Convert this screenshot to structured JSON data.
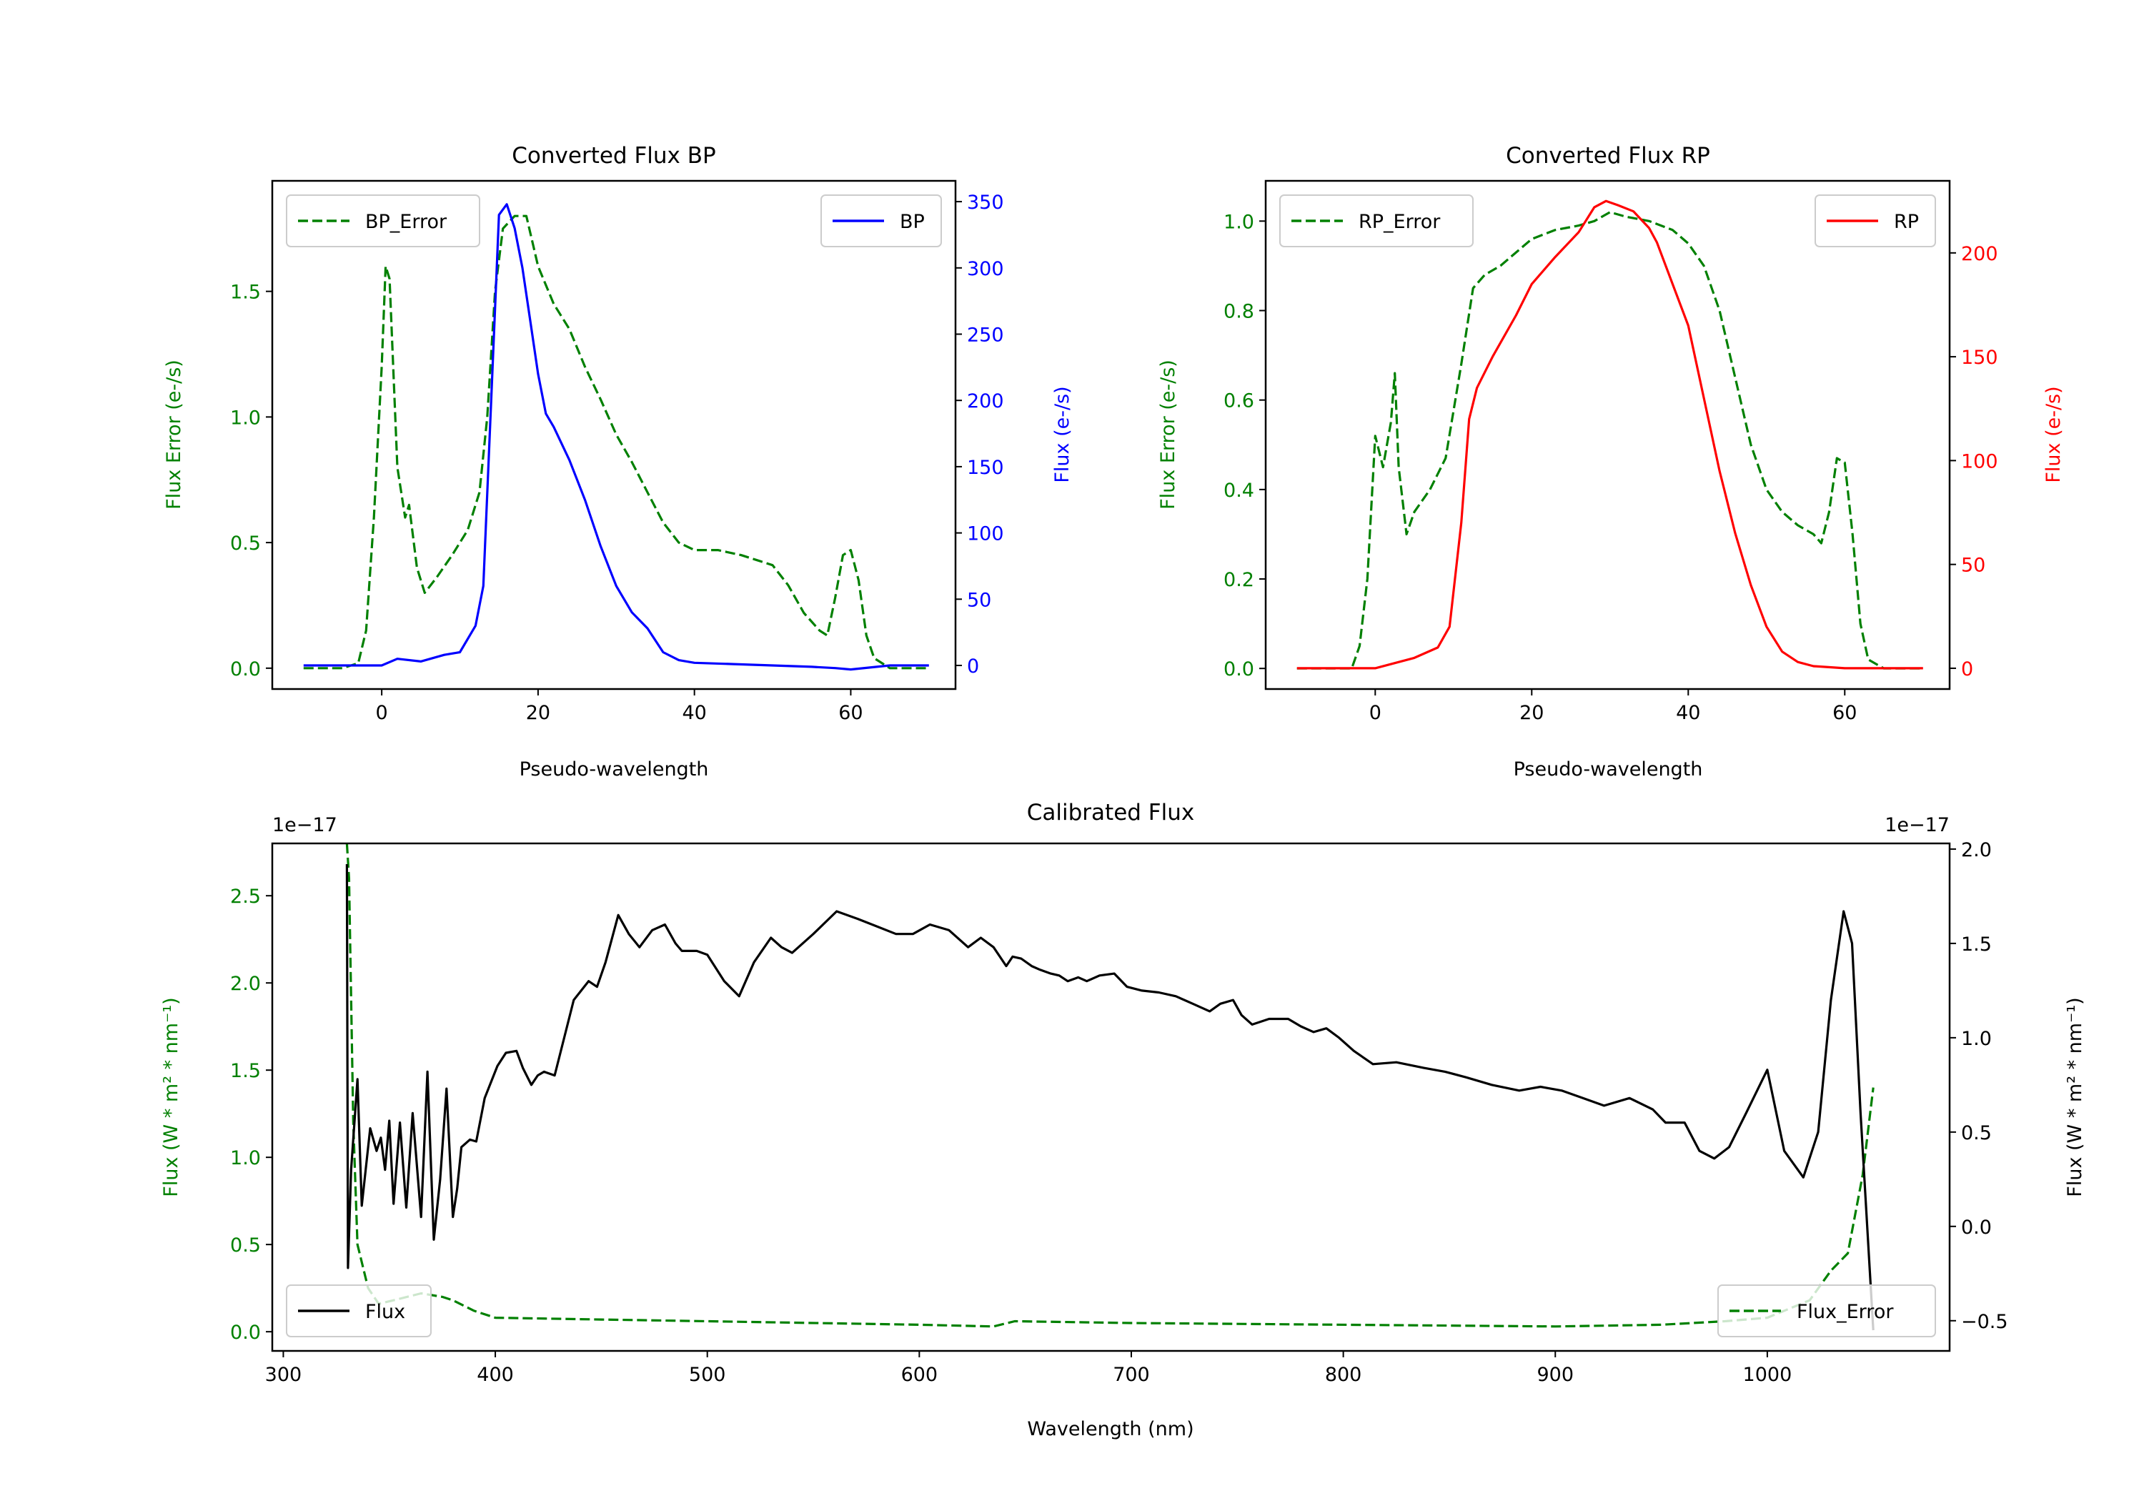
{
  "chart_data": [
    {
      "id": "bp",
      "type": "line",
      "title": "Converted Flux BP",
      "xlabel": "Pseudo-wavelength",
      "ylabel_left": "Flux Error (e-/s)",
      "ylabel_right": "Flux (e-/s)",
      "xlim": [
        -14,
        73.4
      ],
      "ylim_left": [
        -0.083,
        1.94
      ],
      "ylim_right": [
        -17.8,
        365.7
      ],
      "xticks": [
        0,
        20,
        40,
        60
      ],
      "yticks_left": [
        0.0,
        0.5,
        1.0,
        1.5
      ],
      "yticks_right": [
        0,
        50,
        100,
        150,
        200,
        250,
        300,
        350
      ],
      "left_color": "#008000",
      "right_color": "#0000ff",
      "series": [
        {
          "name": "BP_Error",
          "axis": "left",
          "color": "#008000",
          "style": "dashed",
          "legend": "upper-left",
          "x": [
            -10,
            -5,
            -3,
            -2,
            -1,
            0,
            0.5,
            1,
            2,
            3,
            3.5,
            4.5,
            5.5,
            7,
            9,
            11,
            12.5,
            13.5,
            14.5,
            15.5,
            17,
            18.5,
            20,
            22,
            24,
            26,
            28,
            30,
            32,
            34,
            36,
            38,
            40,
            43,
            46,
            48,
            50,
            52,
            54,
            56,
            57,
            58,
            59,
            60,
            61,
            62,
            63,
            65,
            70
          ],
          "y": [
            0,
            0,
            0.02,
            0.15,
            0.6,
            1.2,
            1.6,
            1.55,
            0.8,
            0.6,
            0.65,
            0.4,
            0.3,
            0.36,
            0.45,
            0.55,
            0.7,
            1.0,
            1.5,
            1.75,
            1.8,
            1.8,
            1.6,
            1.45,
            1.35,
            1.2,
            1.07,
            0.93,
            0.82,
            0.7,
            0.58,
            0.5,
            0.47,
            0.47,
            0.45,
            0.43,
            0.41,
            0.33,
            0.22,
            0.15,
            0.13,
            0.28,
            0.45,
            0.47,
            0.35,
            0.13,
            0.04,
            0,
            0
          ]
        },
        {
          "name": "BP",
          "axis": "right",
          "color": "#0000ff",
          "style": "solid",
          "legend": "upper-right",
          "x": [
            -10,
            0,
            2,
            5,
            8,
            10,
            12,
            13,
            14,
            15,
            16,
            17,
            18,
            19,
            20,
            21,
            22,
            24,
            26,
            28,
            30,
            32,
            34,
            36,
            38,
            40,
            45,
            50,
            55,
            58,
            60,
            65,
            70
          ],
          "y": [
            0,
            0,
            5,
            3,
            8,
            10,
            30,
            60,
            200,
            340,
            348,
            330,
            300,
            260,
            220,
            190,
            180,
            155,
            125,
            90,
            60,
            40,
            28,
            10,
            4,
            2,
            1,
            0,
            -1,
            -2,
            -3,
            0,
            0
          ]
        }
      ]
    },
    {
      "id": "rp",
      "type": "line",
      "title": "Converted Flux RP",
      "xlabel": "Pseudo-wavelength",
      "ylabel_left": "Flux Error (e-/s)",
      "ylabel_right": "Flux (e-/s)",
      "xlim": [
        -14,
        73.4
      ],
      "ylim_left": [
        -0.046,
        1.09
      ],
      "ylim_right": [
        -10,
        234.7
      ],
      "xticks": [
        0,
        20,
        40,
        60
      ],
      "yticks_left": [
        0.0,
        0.2,
        0.4,
        0.6,
        0.8,
        1.0
      ],
      "yticks_right": [
        0,
        50,
        100,
        150,
        200
      ],
      "left_color": "#008000",
      "right_color": "#ff0000",
      "series": [
        {
          "name": "RP_Error",
          "axis": "left",
          "color": "#008000",
          "style": "dashed",
          "legend": "upper-left",
          "x": [
            -10,
            -3,
            -2,
            -1,
            0,
            1,
            2,
            2.5,
            3,
            4,
            5,
            7,
            9,
            11,
            12.5,
            14,
            16,
            18,
            20,
            23,
            26,
            28,
            30,
            32,
            35,
            38,
            40,
            42,
            44,
            46,
            48,
            50,
            52,
            54,
            56,
            57,
            58,
            59,
            60,
            61,
            62,
            63,
            65,
            70
          ],
          "y": [
            0,
            0,
            0.05,
            0.2,
            0.52,
            0.45,
            0.55,
            0.66,
            0.45,
            0.3,
            0.35,
            0.4,
            0.47,
            0.68,
            0.85,
            0.88,
            0.9,
            0.93,
            0.96,
            0.98,
            0.99,
            1.0,
            1.02,
            1.01,
            1.0,
            0.98,
            0.95,
            0.9,
            0.8,
            0.65,
            0.5,
            0.4,
            0.35,
            0.32,
            0.3,
            0.28,
            0.35,
            0.47,
            0.46,
            0.3,
            0.1,
            0.02,
            0,
            0
          ]
        },
        {
          "name": "RP",
          "axis": "right",
          "color": "#ff0000",
          "style": "solid",
          "legend": "upper-right",
          "x": [
            -10,
            0,
            5,
            8,
            9.5,
            11,
            12,
            13,
            15,
            18,
            20,
            23,
            26,
            28,
            29.5,
            31,
            33,
            35,
            36,
            38,
            40,
            42,
            44,
            46,
            48,
            50,
            52,
            54,
            56,
            60,
            70
          ],
          "y": [
            0,
            0,
            5,
            10,
            20,
            70,
            120,
            135,
            150,
            170,
            185,
            198,
            210,
            222,
            225,
            223,
            220,
            212,
            205,
            185,
            165,
            130,
            95,
            65,
            40,
            20,
            8,
            3,
            1,
            0,
            0
          ]
        }
      ]
    },
    {
      "id": "cal",
      "type": "line",
      "title": "Calibrated Flux",
      "xlabel": "Wavelength (nm)",
      "ylabel_left": "Flux (W * m² * nm⁻¹)",
      "ylabel_right": "Flux (W * m² * nm⁻¹)",
      "offset_left": "1e−17",
      "offset_right": "1e−17",
      "xlim": [
        294.8,
        1086
      ],
      "ylim_left": [
        -0.11,
        2.8
      ],
      "ylim_right": [
        -0.66,
        2.03
      ],
      "xticks": [
        300,
        400,
        500,
        600,
        700,
        800,
        900,
        1000
      ],
      "yticks_left": [
        0.0,
        0.5,
        1.0,
        1.5,
        2.0,
        2.5
      ],
      "yticks_right": [
        -0.5,
        0.0,
        0.5,
        1.0,
        1.5,
        2.0
      ],
      "left_color": "#008000",
      "right_color": "#000000",
      "series": [
        {
          "name": "Flux_Error",
          "axis": "left",
          "color": "#008000",
          "style": "dashed",
          "legend": "lower-right",
          "x": [
            330,
            331,
            333,
            335,
            340,
            345,
            352,
            365,
            375,
            380,
            390,
            400,
            450,
            500,
            600,
            635,
            645,
            700,
            900,
            950,
            980,
            1000,
            1020,
            1030,
            1038,
            1045,
            1050
          ],
          "y": [
            2.8,
            2.6,
            1.2,
            0.5,
            0.25,
            0.16,
            0.18,
            0.22,
            0.2,
            0.18,
            0.12,
            0.08,
            0.07,
            0.06,
            0.04,
            0.03,
            0.06,
            0.05,
            0.03,
            0.04,
            0.06,
            0.08,
            0.18,
            0.35,
            0.45,
            0.9,
            1.4
          ]
        },
        {
          "name": "Flux",
          "axis": "right",
          "color": "#000000",
          "style": "solid",
          "legend": "lower-left",
          "x": [
            330,
            330.5,
            332,
            335,
            337,
            341,
            344,
            346,
            348,
            350,
            352,
            355,
            358,
            361,
            365,
            368,
            371,
            374,
            377,
            380,
            382,
            384,
            388,
            391,
            395,
            401,
            405,
            410,
            413,
            417,
            420,
            423,
            428,
            437,
            444,
            448,
            452,
            458,
            463,
            468,
            474,
            480,
            485,
            488,
            495,
            500,
            508,
            515,
            522,
            530,
            535,
            540,
            550,
            561,
            571,
            580,
            589,
            597,
            605,
            614,
            623,
            629,
            635,
            641,
            644,
            648,
            653,
            657,
            662,
            666,
            670,
            675,
            679,
            685,
            692,
            698,
            705,
            713,
            721,
            729,
            737,
            742,
            748,
            752,
            757,
            765,
            774,
            780,
            786,
            792,
            798,
            805,
            814,
            825,
            838,
            848,
            858,
            870,
            883,
            893,
            903,
            913,
            923,
            935,
            946,
            952,
            961,
            968,
            975,
            982,
            990,
            1000,
            1008,
            1017,
            1024,
            1030,
            1036,
            1040,
            1044,
            1050
          ],
          "y": [
            1.92,
            -0.22,
            0.3,
            0.78,
            0.11,
            0.52,
            0.4,
            0.47,
            0.3,
            0.56,
            0.12,
            0.55,
            0.1,
            0.6,
            0.05,
            0.82,
            -0.07,
            0.25,
            0.73,
            0.05,
            0.2,
            0.42,
            0.46,
            0.45,
            0.68,
            0.85,
            0.92,
            0.93,
            0.84,
            0.75,
            0.8,
            0.82,
            0.8,
            1.2,
            1.3,
            1.27,
            1.4,
            1.65,
            1.55,
            1.48,
            1.57,
            1.6,
            1.5,
            1.46,
            1.46,
            1.44,
            1.3,
            1.22,
            1.4,
            1.53,
            1.48,
            1.45,
            1.55,
            1.67,
            1.63,
            1.59,
            1.55,
            1.55,
            1.6,
            1.57,
            1.48,
            1.53,
            1.48,
            1.38,
            1.43,
            1.42,
            1.38,
            1.36,
            1.34,
            1.33,
            1.3,
            1.32,
            1.3,
            1.33,
            1.34,
            1.27,
            1.25,
            1.24,
            1.22,
            1.18,
            1.14,
            1.18,
            1.2,
            1.12,
            1.07,
            1.1,
            1.1,
            1.06,
            1.03,
            1.05,
            1.0,
            0.93,
            0.86,
            0.87,
            0.84,
            0.82,
            0.79,
            0.75,
            0.72,
            0.74,
            0.72,
            0.68,
            0.64,
            0.68,
            0.62,
            0.55,
            0.55,
            0.4,
            0.36,
            0.42,
            0.6,
            0.83,
            0.4,
            0.26,
            0.5,
            1.2,
            1.67,
            1.5,
            0.6,
            -0.55
          ]
        }
      ]
    }
  ]
}
